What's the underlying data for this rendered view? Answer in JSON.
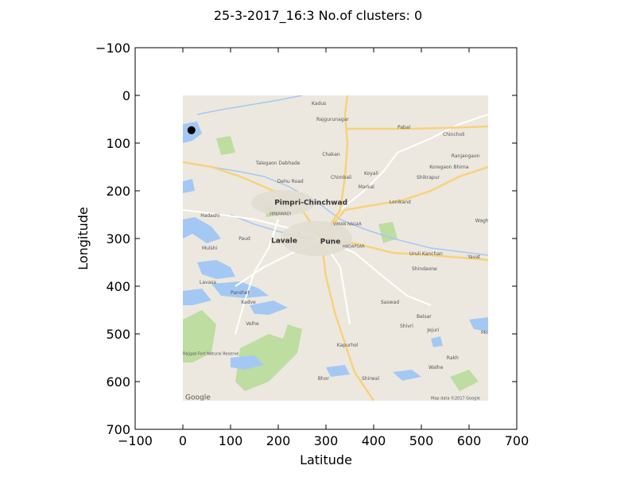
{
  "chart_data": {
    "type": "scatter",
    "title": "25-3-2017_16:3 No.of clusters: 0",
    "xlabel": "Latitude",
    "ylabel": "Longitude",
    "xlim": [
      -100,
      700
    ],
    "ylim": [
      700,
      -100
    ],
    "y_inverted": true,
    "grid": false,
    "x_ticks": [
      "−100",
      "0",
      "100",
      "200",
      "300",
      "400",
      "500",
      "600",
      "700"
    ],
    "y_ticks": [
      "−100",
      "0",
      "100",
      "200",
      "300",
      "400",
      "500",
      "600",
      "700"
    ],
    "x_tick_values": [
      -100,
      0,
      100,
      200,
      300,
      400,
      500,
      600,
      700
    ],
    "y_tick_values": [
      -100,
      0,
      100,
      200,
      300,
      400,
      500,
      600,
      700
    ],
    "series": [
      {
        "points": [
          {
            "x": 18,
            "y": 73
          }
        ]
      }
    ],
    "marker_color": "#000000",
    "background_image": {
      "type": "map",
      "extent_x": [
        0,
        640
      ],
      "extent_y": [
        0,
        640
      ],
      "colors": {
        "land": "#ece8df",
        "water": "#a4c8f4",
        "park": "#b9dc9a",
        "road": "#f7d27a",
        "road_minor": "#ffffff"
      },
      "labels": [
        {
          "text": "Kadus",
          "x": 270,
          "y": 15,
          "kind": "town"
        },
        {
          "text": "Rajgurunagar",
          "x": 280,
          "y": 48,
          "kind": "town"
        },
        {
          "text": "Pabal",
          "x": 450,
          "y": 65,
          "kind": "town"
        },
        {
          "text": "Chincholi",
          "x": 545,
          "y": 80,
          "kind": "town"
        },
        {
          "text": "Ranjangaon",
          "x": 563,
          "y": 125,
          "kind": "town"
        },
        {
          "text": "Chakan",
          "x": 292,
          "y": 122,
          "kind": "town"
        },
        {
          "text": "Talegaon Dabhade",
          "x": 153,
          "y": 140,
          "kind": "town"
        },
        {
          "text": "Koregaon Bhima",
          "x": 517,
          "y": 148,
          "kind": "town"
        },
        {
          "text": "Chimbali",
          "x": 310,
          "y": 170,
          "kind": "town"
        },
        {
          "text": "Koyali",
          "x": 380,
          "y": 162,
          "kind": "town"
        },
        {
          "text": "Shikrapur",
          "x": 490,
          "y": 170,
          "kind": "town"
        },
        {
          "text": "Dehu Road",
          "x": 198,
          "y": 178,
          "kind": "town"
        },
        {
          "text": "Markal",
          "x": 368,
          "y": 190,
          "kind": "town"
        },
        {
          "text": "Pimpri-Chinchwad",
          "x": 192,
          "y": 222,
          "kind": "city"
        },
        {
          "text": "Lonikand",
          "x": 433,
          "y": 222,
          "kind": "town"
        },
        {
          "text": "HINJAWADI",
          "x": 182,
          "y": 247,
          "kind": "area"
        },
        {
          "text": "VIMAN NAGAR",
          "x": 315,
          "y": 268,
          "kind": "area"
        },
        {
          "text": "Wagholi",
          "x": 613,
          "y": 261,
          "kind": "town"
        },
        {
          "text": "Hadashi",
          "x": 37,
          "y": 250,
          "kind": "town"
        },
        {
          "text": "Paud",
          "x": 117,
          "y": 298,
          "kind": "town"
        },
        {
          "text": "Lavale",
          "x": 185,
          "y": 302,
          "kind": "city"
        },
        {
          "text": "Pune",
          "x": 288,
          "y": 303,
          "kind": "city"
        },
        {
          "text": "HADAPSAR",
          "x": 335,
          "y": 315,
          "kind": "area"
        },
        {
          "text": "Uruli Kanchan",
          "x": 475,
          "y": 330,
          "kind": "town"
        },
        {
          "text": "Yavat",
          "x": 597,
          "y": 337,
          "kind": "town"
        },
        {
          "text": "Mulshi",
          "x": 40,
          "y": 318,
          "kind": "town"
        },
        {
          "text": "Shindaone",
          "x": 480,
          "y": 362,
          "kind": "town"
        },
        {
          "text": "Lavasa",
          "x": 35,
          "y": 390,
          "kind": "town"
        },
        {
          "text": "Panshet",
          "x": 100,
          "y": 412,
          "kind": "town"
        },
        {
          "text": "Kadve",
          "x": 122,
          "y": 432,
          "kind": "town"
        },
        {
          "text": "Saswad",
          "x": 415,
          "y": 432,
          "kind": "town"
        },
        {
          "text": "Velhe",
          "x": 132,
          "y": 477,
          "kind": "town"
        },
        {
          "text": "Belsar",
          "x": 490,
          "y": 462,
          "kind": "town"
        },
        {
          "text": "Shivri",
          "x": 455,
          "y": 482,
          "kind": "town"
        },
        {
          "text": "Jejuri",
          "x": 512,
          "y": 490,
          "kind": "town"
        },
        {
          "text": "Mor",
          "x": 625,
          "y": 495,
          "kind": "town"
        },
        {
          "text": "Kapurhol",
          "x": 323,
          "y": 522,
          "kind": "town"
        },
        {
          "text": "Rakh",
          "x": 553,
          "y": 548,
          "kind": "town"
        },
        {
          "text": "Walhe",
          "x": 515,
          "y": 568,
          "kind": "town"
        },
        {
          "text": "Bhor",
          "x": 283,
          "y": 592,
          "kind": "town"
        },
        {
          "text": "Shirwal",
          "x": 375,
          "y": 592,
          "kind": "town"
        },
        {
          "text": "Rajgad Fort Natural Reserve",
          "x": 0,
          "y": 540,
          "kind": "area"
        },
        {
          "text": "Map data ©2017 Google",
          "x": 520,
          "y": 633,
          "kind": "credit"
        },
        {
          "text": "Google",
          "x": 5,
          "y": 630,
          "kind": "logo"
        }
      ]
    }
  }
}
